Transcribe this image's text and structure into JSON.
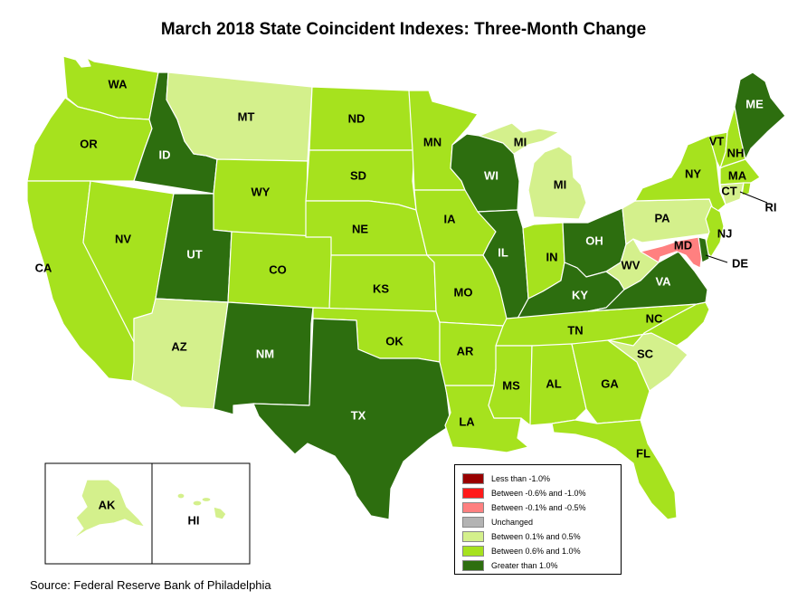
{
  "title": "March 2018 State Coincident Indexes: Three-Month Change",
  "source": "Source: Federal Reserve Bank of Philadelphia",
  "colors": {
    "lt_neg1": "#990000",
    "neg06_neg1": "#ff1a1a",
    "neg01_neg05": "#ff8080",
    "unchanged": "#b3b3b3",
    "p01_p05": "#d4f08c",
    "p06_p1": "#a6e21e",
    "gt_p1": "#2d6e0f"
  },
  "legend": [
    {
      "key": "lt_neg1",
      "label": "Less than -1.0%"
    },
    {
      "key": "neg06_neg1",
      "label": "Between -0.6% and -1.0%"
    },
    {
      "key": "neg01_neg05",
      "label": "Between -0.1% and -0.5%"
    },
    {
      "key": "unchanged",
      "label": "Unchanged"
    },
    {
      "key": "p01_p05",
      "label": "Between 0.1% and 0.5%"
    },
    {
      "key": "p06_p1",
      "label": "Between 0.6% and 1.0%"
    },
    {
      "key": "gt_p1",
      "label": "Greater than 1.0%"
    }
  ],
  "states": {
    "WA": "p06_p1",
    "OR": "p06_p1",
    "CA": "p06_p1",
    "ID": "gt_p1",
    "NV": "p06_p1",
    "MT": "p01_p05",
    "WY": "p06_p1",
    "UT": "gt_p1",
    "AZ": "p01_p05",
    "CO": "p06_p1",
    "NM": "gt_p1",
    "ND": "p06_p1",
    "SD": "p06_p1",
    "NE": "p06_p1",
    "KS": "p06_p1",
    "OK": "p06_p1",
    "TX": "gt_p1",
    "MN": "p06_p1",
    "IA": "p06_p1",
    "MO": "p06_p1",
    "AR": "p06_p1",
    "LA": "p06_p1",
    "WI": "gt_p1",
    "IL": "gt_p1",
    "MI": "p01_p05",
    "IN": "p06_p1",
    "OH": "gt_p1",
    "KY": "gt_p1",
    "TN": "p06_p1",
    "MS": "p06_p1",
    "AL": "p06_p1",
    "GA": "p06_p1",
    "FL": "p06_p1",
    "SC": "p01_p05",
    "NC": "p06_p1",
    "VA": "gt_p1",
    "WV": "p01_p05",
    "PA": "p01_p05",
    "NY": "p06_p1",
    "VT": "p06_p1",
    "NH": "p06_p1",
    "ME": "gt_p1",
    "MA": "p06_p1",
    "RI": "p06_p1",
    "CT": "p01_p05",
    "NJ": "p06_p1",
    "DE": "gt_p1",
    "MD": "neg01_neg05",
    "AK": "p01_p05",
    "HI": "p01_p05"
  },
  "labels": {
    "WA": "WA",
    "OR": "OR",
    "CA": "CA",
    "ID": "ID",
    "NV": "NV",
    "MT": "MT",
    "WY": "WY",
    "UT": "UT",
    "AZ": "AZ",
    "CO": "CO",
    "NM": "NM",
    "ND": "ND",
    "SD": "SD",
    "NE": "NE",
    "KS": "KS",
    "OK": "OK",
    "TX": "TX",
    "MN": "MN",
    "IA": "IA",
    "MO": "MO",
    "AR": "AR",
    "LA": "LA",
    "WI": "WI",
    "IL": "IL",
    "MI": "MI",
    "MI_UP": "MI",
    "IN": "IN",
    "OH": "OH",
    "KY": "KY",
    "TN": "TN",
    "MS": "MS",
    "AL": "AL",
    "GA": "GA",
    "FL": "FL",
    "SC": "SC",
    "NC": "NC",
    "VA": "VA",
    "WV": "WV",
    "PA": "PA",
    "NY": "NY",
    "VT": "VT",
    "NH": "NH",
    "ME": "ME",
    "MA": "MA",
    "RI": "RI",
    "CT": "CT",
    "NJ": "NJ",
    "DE": "DE",
    "MD": "MD",
    "AK": "AK",
    "HI": "HI"
  }
}
